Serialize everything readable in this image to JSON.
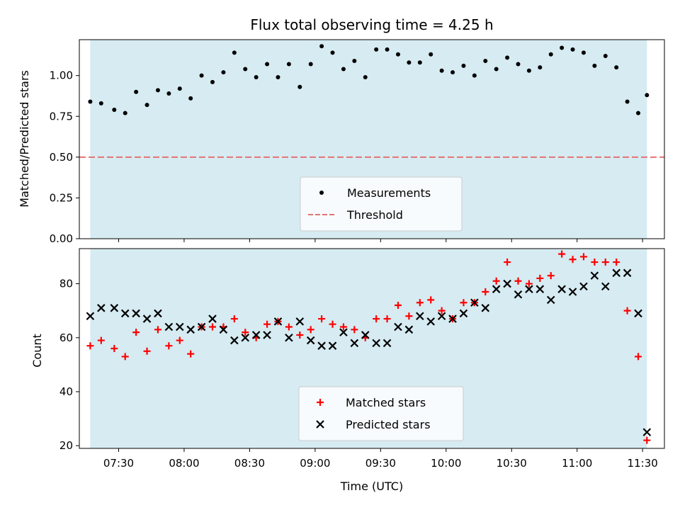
{
  "chart_data": [
    {
      "type": "scatter",
      "title": "Flux total observing time = 4.25 h",
      "xlabel": "",
      "ylabel": "Matched/Predicted stars",
      "xlim": [
        "07:12",
        "11:40"
      ],
      "ylim": [
        0.0,
        1.22
      ],
      "yticks": [
        0.0,
        0.25,
        0.5,
        0.75,
        1.0
      ],
      "ytick_labels": [
        "0.00",
        "0.25",
        "0.50",
        "0.75",
        "1.00"
      ],
      "observing_window": [
        "07:17",
        "11:32"
      ],
      "grid": false,
      "legend_position": "bottom-center",
      "threshold": {
        "name": "Threshold",
        "value": 0.5,
        "color": "#e57373"
      },
      "series": [
        {
          "name": "Measurements",
          "color": "#000000",
          "marker": "dot",
          "x": [
            "07:17",
            "07:22",
            "07:28",
            "07:33",
            "07:38",
            "07:43",
            "07:48",
            "07:53",
            "07:58",
            "08:03",
            "08:08",
            "08:13",
            "08:18",
            "08:23",
            "08:28",
            "08:33",
            "08:38",
            "08:43",
            "08:48",
            "08:53",
            "08:58",
            "09:03",
            "09:08",
            "09:13",
            "09:18",
            "09:23",
            "09:28",
            "09:33",
            "09:38",
            "09:43",
            "09:48",
            "09:53",
            "09:58",
            "10:03",
            "10:08",
            "10:13",
            "10:18",
            "10:23",
            "10:28",
            "10:33",
            "10:38",
            "10:43",
            "10:48",
            "10:53",
            "10:58",
            "11:03",
            "11:08",
            "11:13",
            "11:18",
            "11:23",
            "11:28",
            "11:32"
          ],
          "y": [
            0.84,
            0.83,
            0.79,
            0.77,
            0.9,
            0.82,
            0.91,
            0.89,
            0.92,
            0.86,
            1.0,
            0.96,
            1.02,
            1.14,
            1.04,
            0.99,
            1.07,
            0.99,
            1.07,
            0.93,
            1.07,
            1.18,
            1.14,
            1.04,
            1.09,
            0.99,
            1.16,
            1.16,
            1.13,
            1.08,
            1.08,
            1.13,
            1.03,
            1.02,
            1.06,
            1.0,
            1.09,
            1.04,
            1.11,
            1.07,
            1.03,
            1.05,
            1.13,
            1.17,
            1.16,
            1.14,
            1.06,
            1.12,
            1.05,
            0.84,
            0.77,
            0.88
          ]
        }
      ]
    },
    {
      "type": "scatter",
      "title": "",
      "xlabel": "Time (UTC)",
      "ylabel": "Count",
      "xlim": [
        "07:12",
        "11:40"
      ],
      "ylim": [
        19,
        93
      ],
      "yticks": [
        20,
        40,
        60,
        80
      ],
      "ytick_labels": [
        "20",
        "40",
        "60",
        "80"
      ],
      "xticks": [
        "07:30",
        "08:00",
        "08:30",
        "09:00",
        "09:30",
        "10:00",
        "10:30",
        "11:00",
        "11:30"
      ],
      "xtick_labels": [
        "07:30",
        "08:00",
        "08:30",
        "09:00",
        "09:30",
        "10:00",
        "10:30",
        "11:00",
        "11:30"
      ],
      "observing_window": [
        "07:17",
        "11:32"
      ],
      "grid": false,
      "legend_position": "bottom-center",
      "series": [
        {
          "name": "Matched stars",
          "color": "#ff0000",
          "marker": "plus",
          "x": [
            "07:17",
            "07:22",
            "07:28",
            "07:33",
            "07:38",
            "07:43",
            "07:48",
            "07:53",
            "07:58",
            "08:03",
            "08:08",
            "08:13",
            "08:18",
            "08:23",
            "08:28",
            "08:33",
            "08:38",
            "08:43",
            "08:48",
            "08:53",
            "08:58",
            "09:03",
            "09:08",
            "09:13",
            "09:18",
            "09:23",
            "09:28",
            "09:33",
            "09:38",
            "09:43",
            "09:48",
            "09:53",
            "09:58",
            "10:03",
            "10:08",
            "10:13",
            "10:18",
            "10:23",
            "10:28",
            "10:33",
            "10:38",
            "10:43",
            "10:48",
            "10:53",
            "10:58",
            "11:03",
            "11:08",
            "11:13",
            "11:18",
            "11:23",
            "11:28",
            "11:32"
          ],
          "y": [
            57,
            59,
            56,
            53,
            62,
            55,
            63,
            57,
            59,
            54,
            64,
            64,
            64,
            67,
            62,
            60,
            65,
            66,
            64,
            61,
            63,
            67,
            65,
            64,
            63,
            60,
            67,
            67,
            72,
            68,
            73,
            74,
            70,
            67,
            73,
            73,
            77,
            81,
            88,
            81,
            80,
            82,
            83,
            91,
            89,
            90,
            88,
            88,
            88,
            70,
            53,
            22
          ]
        },
        {
          "name": "Predicted stars",
          "color": "#000000",
          "marker": "x",
          "x": [
            "07:17",
            "07:22",
            "07:28",
            "07:33",
            "07:38",
            "07:43",
            "07:48",
            "07:53",
            "07:58",
            "08:03",
            "08:08",
            "08:13",
            "08:18",
            "08:23",
            "08:28",
            "08:33",
            "08:38",
            "08:43",
            "08:48",
            "08:53",
            "08:58",
            "09:03",
            "09:08",
            "09:13",
            "09:18",
            "09:23",
            "09:28",
            "09:33",
            "09:38",
            "09:43",
            "09:48",
            "09:53",
            "09:58",
            "10:03",
            "10:08",
            "10:13",
            "10:18",
            "10:23",
            "10:28",
            "10:33",
            "10:38",
            "10:43",
            "10:48",
            "10:53",
            "10:58",
            "11:03",
            "11:08",
            "11:13",
            "11:18",
            "11:23",
            "11:28",
            "11:32"
          ],
          "y": [
            68,
            71,
            71,
            69,
            69,
            67,
            69,
            64,
            64,
            63,
            64,
            67,
            63,
            59,
            60,
            61,
            61,
            66,
            60,
            66,
            59,
            57,
            57,
            62,
            58,
            61,
            58,
            58,
            64,
            63,
            68,
            66,
            68,
            67,
            69,
            73,
            71,
            78,
            80,
            76,
            78,
            78,
            74,
            78,
            77,
            79,
            83,
            79,
            84,
            84,
            69,
            25
          ]
        }
      ]
    }
  ]
}
